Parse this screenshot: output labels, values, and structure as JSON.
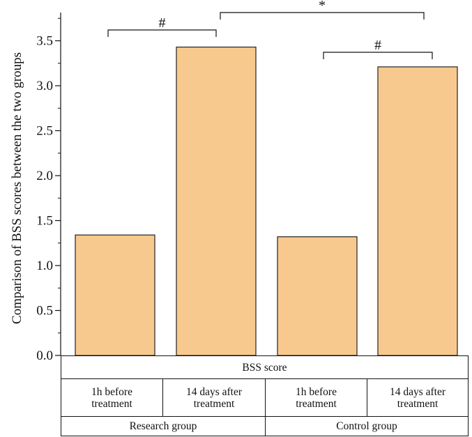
{
  "chart_data": {
    "type": "bar",
    "ylabel": "Comparison of BSS scores between the two groups",
    "ylim": [
      0,
      3.75
    ],
    "yticks": [
      "0.0",
      "0.5",
      "1.0",
      "1.5",
      "2.0",
      "2.5",
      "3.0",
      "3.5"
    ],
    "ytick_values": [
      0,
      0.5,
      1.0,
      1.5,
      2.0,
      2.5,
      3.0,
      3.5
    ],
    "categories": [
      "1h before treatment",
      "14 days after treatment",
      "1h before treatment",
      "14 days after treatment"
    ],
    "groups": [
      "Research group",
      "Control group"
    ],
    "values": [
      1.34,
      3.43,
      1.32,
      3.21
    ],
    "bar_color": "#f8c98e",
    "significance": [
      {
        "from": 0,
        "to": 1,
        "label": "#"
      },
      {
        "from": 2,
        "to": 3,
        "label": "#"
      },
      {
        "from": 1,
        "to": 3,
        "label": "*"
      }
    ]
  },
  "table": {
    "header": "BSS score",
    "cells": [
      {
        "line1": "1h before",
        "line2": "treatment"
      },
      {
        "line1": "14 days after",
        "line2": "treatment"
      },
      {
        "line1": "1h before",
        "line2": "treatment"
      },
      {
        "line1": "14 days after",
        "line2": "treatment"
      }
    ],
    "groups": [
      "Research group",
      "Control group"
    ]
  }
}
